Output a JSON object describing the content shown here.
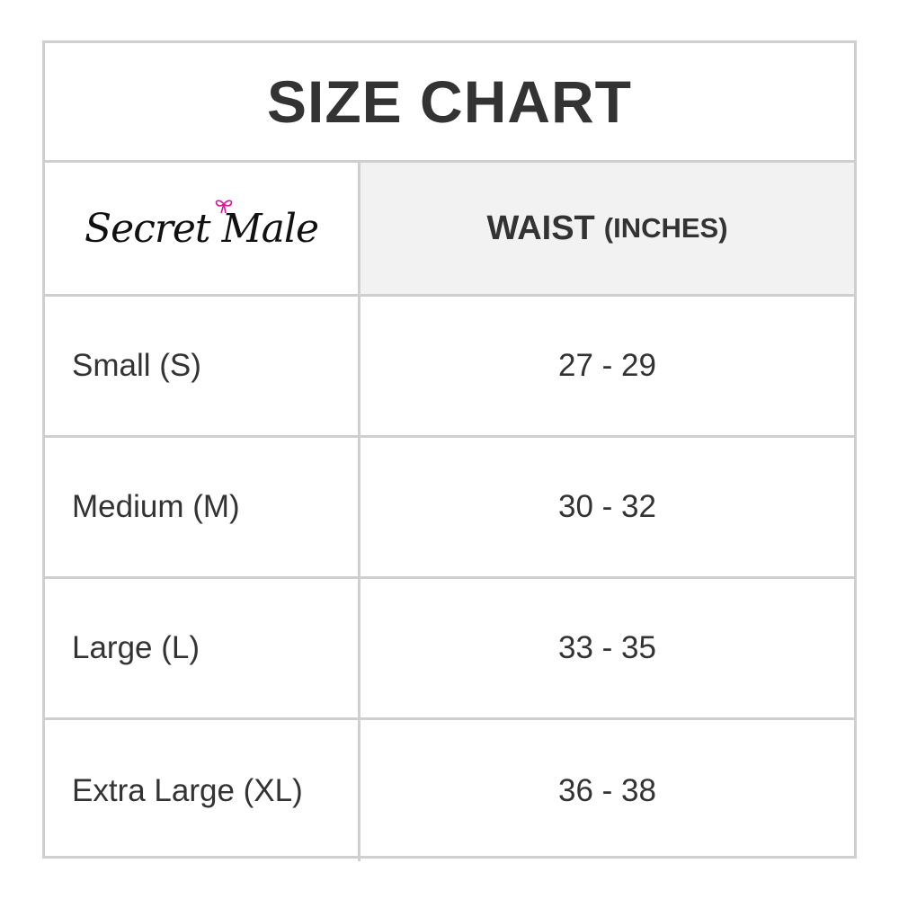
{
  "title": "SIZE CHART",
  "logo": {
    "text": "Secret Male",
    "bow_color": "#e0119a"
  },
  "header": {
    "size_col": "",
    "waist_main": "WAIST",
    "waist_unit": "(INCHES)"
  },
  "rows": [
    {
      "size": "Small (S)",
      "waist": "27 - 29"
    },
    {
      "size": "Medium (M)",
      "waist": "30 - 32"
    },
    {
      "size": "Large (L)",
      "waist": "33 - 35"
    },
    {
      "size": "Extra Large (XL)",
      "waist": "36 - 38"
    }
  ]
}
